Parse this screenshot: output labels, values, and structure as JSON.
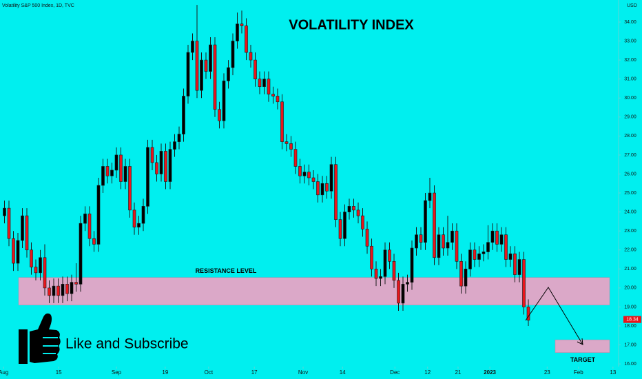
{
  "chart_data": {
    "type": "candlestick",
    "source": "Volatility S&P 500 Index, 1D, TVC",
    "title": "VOLATILITY INDEX",
    "currency": "USD",
    "open": [
      23.8,
      24.2,
      22.6,
      21.3,
      22.5,
      23.8,
      22.0,
      21.1,
      20.8,
      21.6,
      20.0,
      19.6,
      20.1,
      19.6,
      20.2,
      19.7,
      20.3,
      20.2,
      23.4,
      23.9,
      22.6,
      22.3,
      25.4,
      26.4,
      25.9,
      26.2,
      27.0,
      25.6,
      26.4,
      24.1,
      23.2,
      23.4,
      24.3,
      27.4,
      26.6,
      26.0,
      27.2,
      25.6,
      27.3,
      27.7,
      28.1,
      30.1,
      32.4,
      33.0,
      30.4,
      32.0,
      31.4,
      32.8,
      29.4,
      28.8,
      30.9,
      31.6,
      33.0,
      33.9,
      33.8,
      32.4,
      32.0,
      31.0,
      30.6,
      31.0,
      30.2,
      30.1,
      29.8,
      27.7,
      27.6,
      27.3,
      26.4,
      25.9,
      26.1,
      25.8,
      25.6,
      24.9,
      25.5,
      25.1,
      26.5,
      23.6,
      22.6,
      24.0,
      24.3,
      24.1,
      23.8,
      23.1,
      22.2,
      21.0,
      20.5,
      20.6,
      22.0,
      21.4,
      20.4,
      19.2,
      20.2,
      20.3,
      22.1,
      22.8,
      22.4,
      24.6,
      25.0,
      21.6,
      22.8,
      22.1,
      22.4,
      23.0,
      21.4,
      20.1,
      21.0,
      22.0,
      21.5,
      21.8,
      21.9,
      22.4,
      23.0,
      22.3,
      22.8,
      21.5,
      21.8,
      20.7,
      21.5,
      19.0
    ],
    "high": [
      24.6,
      24.6,
      23.0,
      22.9,
      24.2,
      24.2,
      22.4,
      21.5,
      22.0,
      22.3,
      20.4,
      20.5,
      20.5,
      20.6,
      20.6,
      20.7,
      21.3,
      23.8,
      24.3,
      24.3,
      23.0,
      25.8,
      26.8,
      26.8,
      26.6,
      27.4,
      27.4,
      26.8,
      26.8,
      24.5,
      23.8,
      24.7,
      27.8,
      27.8,
      27.0,
      27.6,
      27.6,
      27.7,
      28.1,
      28.5,
      30.5,
      32.8,
      33.4,
      34.9,
      32.4,
      32.4,
      33.2,
      33.2,
      29.8,
      31.3,
      32.0,
      33.4,
      34.5,
      34.6,
      34.2,
      32.8,
      32.4,
      31.4,
      31.4,
      31.4,
      30.6,
      30.5,
      30.2,
      28.1,
      28.0,
      27.7,
      26.8,
      26.5,
      26.5,
      26.2,
      26.0,
      25.9,
      25.9,
      26.9,
      26.9,
      24.0,
      24.4,
      24.7,
      24.7,
      24.5,
      24.2,
      23.5,
      22.6,
      21.4,
      21.0,
      22.4,
      22.4,
      21.8,
      20.8,
      20.6,
      20.7,
      22.5,
      23.2,
      23.2,
      25.0,
      25.8,
      25.4,
      23.2,
      23.2,
      23.8,
      23.4,
      23.4,
      21.8,
      21.4,
      22.4,
      22.4,
      22.2,
      22.3,
      23.3,
      23.4,
      23.4,
      23.2,
      23.2,
      22.2,
      22.2,
      21.9,
      21.9,
      19.4
    ],
    "low": [
      23.4,
      22.2,
      20.9,
      20.9,
      22.1,
      21.6,
      20.7,
      20.4,
      20.4,
      19.6,
      19.2,
      19.2,
      19.2,
      19.2,
      19.3,
      19.3,
      19.8,
      19.8,
      23.0,
      22.2,
      21.9,
      21.9,
      25.0,
      25.5,
      25.5,
      25.8,
      25.2,
      25.2,
      23.7,
      22.8,
      22.8,
      23.0,
      23.9,
      26.2,
      25.6,
      25.6,
      25.2,
      25.2,
      26.9,
      27.3,
      27.7,
      29.7,
      32.0,
      30.0,
      30.0,
      31.0,
      31.0,
      29.0,
      28.4,
      28.4,
      30.5,
      31.2,
      32.6,
      33.4,
      32.0,
      31.6,
      30.6,
      30.2,
      30.2,
      29.8,
      29.7,
      29.4,
      27.3,
      27.2,
      26.9,
      26.0,
      25.5,
      25.5,
      25.4,
      25.2,
      24.5,
      24.5,
      24.7,
      24.7,
      23.2,
      22.2,
      22.2,
      23.6,
      23.7,
      23.4,
      22.7,
      21.8,
      20.6,
      20.1,
      20.1,
      20.2,
      21.0,
      20.0,
      18.8,
      18.8,
      19.8,
      19.9,
      21.7,
      22.0,
      22.0,
      24.2,
      21.2,
      21.2,
      21.7,
      21.7,
      22.0,
      21.0,
      19.7,
      19.7,
      20.6,
      21.1,
      21.1,
      21.4,
      21.5,
      22.0,
      21.9,
      21.9,
      21.1,
      21.1,
      20.3,
      20.3,
      18.6,
      18.0
    ],
    "close": [
      24.2,
      22.6,
      21.3,
      22.5,
      23.8,
      22.0,
      21.1,
      20.8,
      21.6,
      20.0,
      19.6,
      20.1,
      19.6,
      20.2,
      19.7,
      20.3,
      20.2,
      23.4,
      23.9,
      22.6,
      22.3,
      25.4,
      26.4,
      25.9,
      26.2,
      27.0,
      25.6,
      26.4,
      24.1,
      23.2,
      23.4,
      24.3,
      27.4,
      26.6,
      26.0,
      27.2,
      25.6,
      27.3,
      27.7,
      28.1,
      30.1,
      32.4,
      33.0,
      30.4,
      32.0,
      31.4,
      32.8,
      29.4,
      28.8,
      30.9,
      31.6,
      33.0,
      33.9,
      33.8,
      32.4,
      32.0,
      31.0,
      30.6,
      31.0,
      30.2,
      30.1,
      29.8,
      27.7,
      27.6,
      27.3,
      26.4,
      25.9,
      26.1,
      25.8,
      25.6,
      24.9,
      25.5,
      25.1,
      26.5,
      23.6,
      22.6,
      24.0,
      24.3,
      24.1,
      23.8,
      23.1,
      22.2,
      21.0,
      20.5,
      20.6,
      22.0,
      21.4,
      20.4,
      19.2,
      20.2,
      20.3,
      22.1,
      22.8,
      22.4,
      24.6,
      25.0,
      21.6,
      22.8,
      22.1,
      22.4,
      23.0,
      21.4,
      20.1,
      21.0,
      22.0,
      21.5,
      21.8,
      21.9,
      22.4,
      23.0,
      22.3,
      22.8,
      21.5,
      21.8,
      20.7,
      21.5,
      19.0,
      18.3
    ],
    "last_price": 18.34,
    "up_color": "#000000",
    "down_color": "#e8161c",
    "background": "#00efef",
    "xlim": [
      -1,
      137
    ],
    "xticks": [
      {
        "value": -0.2,
        "label": "Aug"
      },
      {
        "value": 12.1,
        "label": "15"
      },
      {
        "value": 25.0,
        "label": "Sep"
      },
      {
        "value": 35.9,
        "label": "19"
      },
      {
        "value": 45.6,
        "label": "Oct"
      },
      {
        "value": 55.8,
        "label": "17"
      },
      {
        "value": 66.7,
        "label": "Nov"
      },
      {
        "value": 75.5,
        "label": "14"
      },
      {
        "value": 87.2,
        "label": "Dec"
      },
      {
        "value": 94.5,
        "label": "12"
      },
      {
        "value": 101.3,
        "label": "21"
      },
      {
        "value": 108.4,
        "label": "2023"
      },
      {
        "value": 121.2,
        "label": "23"
      },
      {
        "value": 128.2,
        "label": "Feb"
      },
      {
        "value": 135.9,
        "label": "13"
      }
    ],
    "ylim": [
      15.86,
      35.16
    ],
    "yticks": [
      {
        "value": 16,
        "label": "16.00"
      },
      {
        "value": 17,
        "label": "17.00"
      },
      {
        "value": 18,
        "label": "18.00"
      },
      {
        "value": 19,
        "label": "19.00"
      },
      {
        "value": 20,
        "label": "20.00"
      },
      {
        "value": 21,
        "label": "21.00"
      },
      {
        "value": 22,
        "label": "22.00"
      },
      {
        "value": 23,
        "label": "23.00"
      },
      {
        "value": 24,
        "label": "24.00"
      },
      {
        "value": 25,
        "label": "25.00"
      },
      {
        "value": 26,
        "label": "26.00"
      },
      {
        "value": 27,
        "label": "27.00"
      },
      {
        "value": 28,
        "label": "28.00"
      },
      {
        "value": 29,
        "label": "29.00"
      },
      {
        "value": 30,
        "label": "30.00"
      },
      {
        "value": 31,
        "label": "31.00"
      },
      {
        "value": 32,
        "label": "32.00"
      },
      {
        "value": 33,
        "label": "33.00"
      },
      {
        "value": 34,
        "label": "34.00"
      }
    ],
    "resistance": {
      "label": "RESISTANCE LEVEL",
      "low": 19.1,
      "high": 20.55,
      "color": "#dba8c8"
    },
    "target": {
      "label": "TARGET",
      "low": 16.6,
      "high": 17.27,
      "color": "#dba8c8"
    },
    "promo": "Like and Subscribe"
  }
}
